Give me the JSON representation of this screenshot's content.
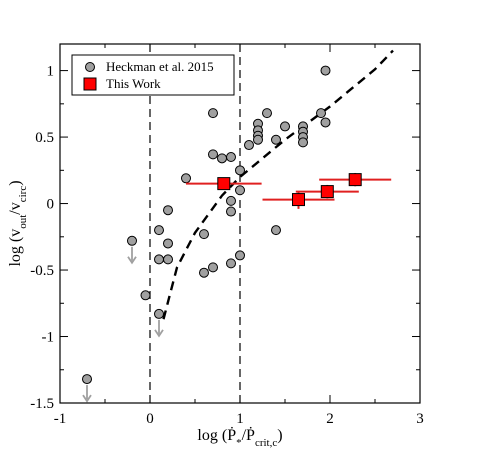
{
  "chart_data": {
    "type": "scatter",
    "title": "",
    "xlabel": "log (Ṗ*/Ṗcrit,c)",
    "ylabel": "log (vout/vcirc)",
    "xlim": [
      -1,
      3
    ],
    "ylim": [
      -1.5,
      1.2
    ],
    "x_ticks": [
      -1,
      0,
      1,
      2,
      3
    ],
    "y_ticks": [
      -1.5,
      -1,
      -0.5,
      0,
      0.5,
      1
    ],
    "grid": false,
    "legend_position": "top-left",
    "colors": {
      "heckman_fill": "#a0a0a0",
      "this_work_fill": "#ff0000",
      "this_work_bars": "#e02020",
      "arrow": "#a0a0a0",
      "curve": "#000000"
    },
    "series": [
      {
        "name": "Heckman et al. 2015",
        "marker": "circle",
        "points": [
          [
            -0.7,
            -1.32
          ],
          [
            -0.2,
            -0.28
          ],
          [
            -0.05,
            -0.69
          ],
          [
            0.1,
            -0.2
          ],
          [
            0.1,
            -0.42
          ],
          [
            0.1,
            -0.83
          ],
          [
            0.2,
            -0.05
          ],
          [
            0.2,
            -0.3
          ],
          [
            0.2,
            -0.42
          ],
          [
            0.4,
            0.19
          ],
          [
            0.6,
            -0.23
          ],
          [
            0.6,
            -0.52
          ],
          [
            0.7,
            0.68
          ],
          [
            0.7,
            0.37
          ],
          [
            0.7,
            -0.48
          ],
          [
            0.8,
            0.34
          ],
          [
            0.9,
            0.35
          ],
          [
            0.9,
            0.02
          ],
          [
            0.9,
            -0.06
          ],
          [
            0.9,
            -0.45
          ],
          [
            1.0,
            0.25
          ],
          [
            1.0,
            0.1
          ],
          [
            1.0,
            -0.39
          ],
          [
            1.1,
            0.44
          ],
          [
            1.2,
            0.6
          ],
          [
            1.2,
            0.55
          ],
          [
            1.2,
            0.51
          ],
          [
            1.2,
            0.48
          ],
          [
            1.3,
            0.68
          ],
          [
            1.4,
            0.48
          ],
          [
            1.4,
            -0.2
          ],
          [
            1.5,
            0.58
          ],
          [
            1.7,
            0.58
          ],
          [
            1.7,
            0.54
          ],
          [
            1.7,
            0.5
          ],
          [
            1.7,
            0.46
          ],
          [
            1.9,
            0.68
          ],
          [
            1.95,
            1.0
          ],
          [
            1.95,
            0.61
          ]
        ]
      },
      {
        "name": "This Work",
        "marker": "square",
        "points": [
          {
            "x": 0.82,
            "y": 0.15,
            "xerr": [
              0.42,
              0.42
            ],
            "yerr": [
              0.03,
              0.04
            ]
          },
          {
            "x": 1.65,
            "y": 0.03,
            "xerr": [
              0.4,
              0.4
            ],
            "yerr": [
              0.07,
              0.06
            ]
          },
          {
            "x": 1.97,
            "y": 0.09,
            "xerr": [
              0.35,
              0.35
            ],
            "yerr": [
              0.05,
              0.05
            ]
          },
          {
            "x": 2.28,
            "y": 0.18,
            "xerr": [
              0.4,
              0.4
            ],
            "yerr": [
              0.05,
              0.05
            ]
          }
        ]
      }
    ],
    "upper_limits": [
      [
        -0.7,
        -1.32
      ],
      [
        -0.2,
        -0.28
      ],
      [
        0.1,
        -0.83
      ]
    ],
    "vertical_lines": [
      0,
      1
    ],
    "curve": {
      "style": "dashed",
      "x_range": [
        0.1,
        2.7
      ],
      "samples": [
        [
          0.15,
          -0.87
        ],
        [
          0.3,
          -0.48
        ],
        [
          0.5,
          -0.22
        ],
        [
          0.8,
          0.06
        ],
        [
          1.0,
          0.2
        ],
        [
          1.5,
          0.48
        ],
        [
          2.0,
          0.73
        ],
        [
          2.5,
          1.01
        ],
        [
          2.7,
          1.15
        ]
      ]
    },
    "legend": [
      {
        "label": "Heckman et al. 2015",
        "marker": "circle"
      },
      {
        "label": "This Work",
        "marker": "square"
      }
    ]
  },
  "axis": {
    "x_title_parts": [
      "log (",
      "Ṗ",
      "*",
      "/",
      "Ṗ",
      "crit,c",
      ")"
    ],
    "y_title_parts": [
      "log (v",
      "out",
      "/v",
      "circ",
      ")"
    ]
  }
}
